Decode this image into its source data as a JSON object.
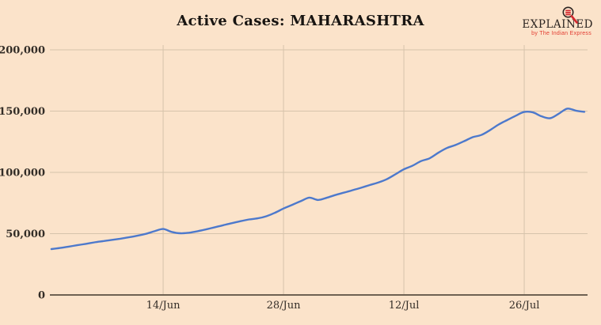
{
  "header": {
    "title": "Active Cases: MAHARASHTRA"
  },
  "logo": {
    "wordmark": "EXPLAINED",
    "tagline": "by The Indian Express"
  },
  "colors": {
    "background": "#fbe3ca",
    "line": "#4d79cc",
    "grid": "#d6c3ab",
    "axis": "#6e6152",
    "label_text": "#332d27",
    "title_text": "#181512",
    "logo_red": "#d3282e"
  },
  "chart_data": {
    "type": "line",
    "title": "Active Cases: MAHARASHTRA",
    "series_name": "Active cases",
    "x": [
      "01/Jun",
      "02/Jun",
      "03/Jun",
      "04/Jun",
      "05/Jun",
      "06/Jun",
      "07/Jun",
      "08/Jun",
      "09/Jun",
      "10/Jun",
      "11/Jun",
      "12/Jun",
      "13/Jun",
      "14/Jun",
      "15/Jun",
      "16/Jun",
      "17/Jun",
      "18/Jun",
      "19/Jun",
      "20/Jun",
      "21/Jun",
      "22/Jun",
      "23/Jun",
      "24/Jun",
      "25/Jun",
      "26/Jun",
      "27/Jun",
      "28/Jun",
      "29/Jun",
      "30/Jun",
      "01/Jul",
      "02/Jul",
      "03/Jul",
      "04/Jul",
      "05/Jul",
      "06/Jul",
      "07/Jul",
      "08/Jul",
      "09/Jul",
      "10/Jul",
      "11/Jul",
      "12/Jul",
      "13/Jul",
      "14/Jul",
      "15/Jul",
      "16/Jul",
      "17/Jul",
      "18/Jul",
      "19/Jul",
      "20/Jul",
      "21/Jul",
      "22/Jul",
      "23/Jul",
      "24/Jul",
      "25/Jul",
      "26/Jul",
      "27/Jul",
      "28/Jul",
      "29/Jul",
      "30/Jul",
      "31/Jul",
      "01/Aug",
      "02/Aug"
    ],
    "values": [
      37400,
      38300,
      39400,
      40600,
      41700,
      42900,
      43900,
      44900,
      45900,
      47000,
      48300,
      49900,
      52000,
      53800,
      51400,
      50300,
      50800,
      52000,
      53500,
      55200,
      56900,
      58600,
      60200,
      61600,
      62500,
      64200,
      67000,
      70500,
      73500,
      76500,
      79400,
      77500,
      79200,
      81500,
      83400,
      85400,
      87400,
      89600,
      91700,
      94400,
      98400,
      102500,
      105400,
      109200,
      111500,
      116000,
      119900,
      122300,
      125400,
      128700,
      130500,
      134400,
      139000,
      142600,
      146200,
      149300,
      149000,
      145800,
      144200,
      147800,
      152000,
      150400,
      149400
    ],
    "x_tick_labels": [
      "14/Jun",
      "28/Jun",
      "12/Jul",
      "26/Jul"
    ],
    "x_tick_indices": [
      13,
      27,
      41,
      55
    ],
    "y_ticks": [
      0,
      50000,
      100000,
      150000,
      200000
    ],
    "y_tick_labels": [
      "0",
      "50,000",
      "100,000",
      "150,000",
      "200,000"
    ],
    "ylim": [
      0,
      200000
    ],
    "grid": true,
    "legend": "none"
  }
}
